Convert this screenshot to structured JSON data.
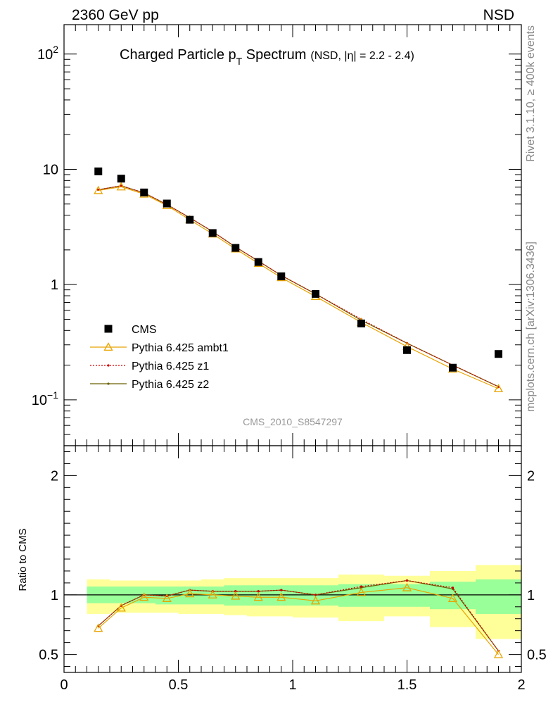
{
  "header": {
    "left": "2360 GeV pp",
    "right": "NSD"
  },
  "side_labels": {
    "top": "Rivet 3.1.10, ≥ 400k events",
    "bottom": "mcplots.cern.ch [arXiv:1306.3436]"
  },
  "watermark": "CMS_2010_S8547297",
  "chart_data": [
    {
      "type": "scatter",
      "title": "Charged Particle p",
      "title_sub": "T",
      "title_tail": " Spectrum",
      "subtitle": "(NSD, |η| = 2.2 - 2.4)",
      "xlabel": "",
      "ylabel": "",
      "xlim": [
        0,
        2
      ],
      "ylim": [
        0.04,
        180
      ],
      "yscale": "log",
      "y_tick_labels": [
        {
          "value": 100,
          "base": "10",
          "exp": "2"
        },
        {
          "value": 10,
          "base": "10",
          "exp": ""
        },
        {
          "value": 1,
          "base": "1",
          "exp": ""
        },
        {
          "value": 0.1,
          "base": "10",
          "exp": "−1"
        }
      ],
      "x": [
        0.15,
        0.25,
        0.35,
        0.45,
        0.55,
        0.65,
        0.75,
        0.85,
        0.95,
        1.1,
        1.3,
        1.5,
        1.7,
        1.9
      ],
      "series": [
        {
          "name": "CMS",
          "color": "#000000",
          "marker": "square",
          "values": [
            9.6,
            8.3,
            6.3,
            5.05,
            3.65,
            2.8,
            2.08,
            1.57,
            1.18,
            0.83,
            0.46,
            0.27,
            0.19,
            0.25
          ]
        },
        {
          "name": "Pythia 6.425 ambt1",
          "color": "#e8a400",
          "marker": "triangle",
          "values": [
            6.55,
            7.05,
            6.1,
            4.85,
            3.65,
            2.75,
            2.04,
            1.53,
            1.15,
            0.79,
            0.47,
            0.29,
            0.185,
            0.125
          ]
        },
        {
          "name": "Pythia 6.425 z1",
          "color": "#cc0000",
          "marker": "dot",
          "dash": true,
          "values": [
            6.65,
            7.2,
            6.25,
            4.95,
            3.8,
            2.88,
            2.12,
            1.6,
            1.2,
            0.83,
            0.5,
            0.31,
            0.2,
            0.13
          ]
        },
        {
          "name": "Pythia 6.425 z2",
          "color": "#6b6100",
          "marker": "dot",
          "values": [
            6.65,
            7.2,
            6.25,
            4.95,
            3.8,
            2.88,
            2.12,
            1.6,
            1.2,
            0.83,
            0.49,
            0.31,
            0.2,
            0.13
          ]
        }
      ],
      "legend_position": "lower-left"
    },
    {
      "type": "line",
      "title": "",
      "xlabel": "",
      "ylabel": "Ratio to CMS",
      "xlim": [
        0,
        2
      ],
      "ylim": [
        0.35,
        2.25
      ],
      "x_ticks": [
        0,
        0.5,
        1,
        1.5,
        2
      ],
      "x_tick_labels": [
        "0",
        "0.5",
        "1",
        "1.5",
        "2"
      ],
      "y_ticks": [
        0.5,
        1,
        2
      ],
      "y_tick_labels": [
        "0.5",
        "1",
        "2"
      ],
      "reference_line": 1,
      "bands": {
        "edges": [
          0.1,
          0.2,
          0.3,
          0.4,
          0.5,
          0.6,
          0.7,
          0.8,
          0.9,
          1.0,
          1.2,
          1.4,
          1.6,
          1.8,
          2.0
        ],
        "inner_color": "#99ff99",
        "outer_color": "#ffff99",
        "inner": [
          [
            0.93,
            1.07
          ],
          [
            0.93,
            1.07
          ],
          [
            0.93,
            1.07
          ],
          [
            0.92,
            1.07
          ],
          [
            0.92,
            1.07
          ],
          [
            0.92,
            1.07
          ],
          [
            0.91,
            1.08
          ],
          [
            0.91,
            1.08
          ],
          [
            0.91,
            1.08
          ],
          [
            0.91,
            1.08
          ],
          [
            0.9,
            1.09
          ],
          [
            0.9,
            1.09
          ],
          [
            0.88,
            1.11
          ],
          [
            0.84,
            1.13
          ]
        ],
        "outer": [
          [
            0.84,
            1.13
          ],
          [
            0.85,
            1.12
          ],
          [
            0.85,
            1.12
          ],
          [
            0.85,
            1.12
          ],
          [
            0.84,
            1.12
          ],
          [
            0.84,
            1.13
          ],
          [
            0.83,
            1.14
          ],
          [
            0.82,
            1.14
          ],
          [
            0.82,
            1.14
          ],
          [
            0.81,
            1.14
          ],
          [
            0.78,
            1.17
          ],
          [
            0.82,
            1.16
          ],
          [
            0.73,
            1.2
          ],
          [
            0.63,
            1.25
          ]
        ]
      },
      "series": [
        {
          "name": "Pythia 6.425 ambt1",
          "color": "#e8a400",
          "marker": "triangle",
          "values": [
            0.72,
            0.89,
            0.98,
            0.97,
            1.01,
            1.0,
            0.99,
            0.98,
            0.98,
            0.95,
            1.02,
            1.06,
            0.97,
            0.5
          ]
        },
        {
          "name": "Pythia 6.425 z1",
          "color": "#cc0000",
          "marker": "dot",
          "dash": true,
          "values": [
            0.74,
            0.91,
            1.0,
            0.99,
            1.04,
            1.03,
            1.03,
            1.03,
            1.04,
            1.0,
            1.07,
            1.12,
            1.06,
            0.53
          ]
        },
        {
          "name": "Pythia 6.425 z2",
          "color": "#6b6100",
          "marker": "dot",
          "values": [
            0.74,
            0.91,
            1.0,
            0.99,
            1.04,
            1.03,
            1.03,
            1.03,
            1.04,
            1.0,
            1.06,
            1.12,
            1.05,
            0.53
          ]
        }
      ]
    }
  ]
}
